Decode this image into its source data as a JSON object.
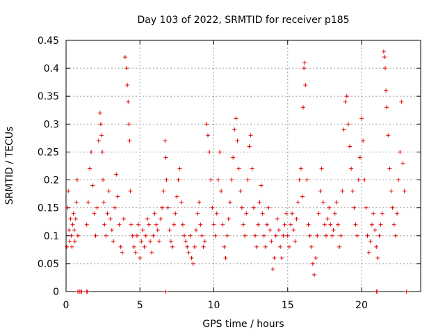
{
  "chart_data": {
    "type": "scatter",
    "title": "Day 103 of 2022, SRMTID for receiver p185",
    "xlabel": "GPS time / hours",
    "ylabel": "SRMTID / TECUs",
    "xlim": [
      0,
      24
    ],
    "ylim": [
      0,
      0.45
    ],
    "xticks": [
      0,
      5,
      10,
      15,
      20
    ],
    "yticks": [
      0,
      0.05,
      0.1,
      0.15,
      0.2,
      0.25,
      0.3,
      0.35,
      0.4,
      0.45
    ],
    "xtick_labels": [
      "0",
      "5",
      "10",
      "15",
      "20"
    ],
    "ytick_labels": [
      "0",
      "0.05",
      "0.1",
      "0.15",
      "0.2",
      "0.25",
      "0.3",
      "0.35",
      "0.4",
      "0.45"
    ],
    "grid": true,
    "marker": "+",
    "color": "#e00000",
    "series": [
      {
        "name": "SRMTID",
        "x": [
          0.05,
          0.1,
          0.15,
          0.2,
          0.25,
          0.3,
          0.35,
          0.4,
          0.45,
          0.5,
          0.55,
          0.6,
          0.65,
          0.7,
          0.75,
          0.8,
          1.4,
          1.5,
          1.6,
          1.7,
          1.8,
          1.9,
          2.0,
          2.1,
          2.2,
          2.3,
          2.35,
          2.4,
          2.45,
          2.5,
          2.55,
          2.6,
          2.7,
          2.8,
          2.9,
          3.0,
          3.1,
          3.2,
          3.3,
          3.4,
          3.5,
          3.6,
          3.7,
          3.8,
          3.9,
          4.0,
          4.1,
          4.15,
          4.2,
          4.25,
          4.3,
          4.35,
          4.4,
          4.5,
          4.6,
          4.7,
          4.8,
          4.9,
          5.0,
          5.1,
          5.2,
          5.3,
          5.4,
          5.5,
          5.6,
          5.7,
          5.8,
          5.9,
          6.0,
          6.1,
          6.2,
          6.3,
          6.4,
          6.5,
          6.6,
          6.7,
          6.75,
          6.8,
          6.9,
          7.0,
          7.1,
          7.2,
          7.3,
          7.4,
          7.5,
          7.6,
          7.7,
          7.8,
          7.9,
          8.0,
          8.1,
          8.2,
          8.3,
          8.4,
          8.5,
          8.6,
          8.7,
          8.8,
          8.9,
          9.0,
          9.1,
          9.2,
          9.3,
          9.4,
          9.5,
          9.6,
          9.7,
          9.8,
          9.9,
          10.0,
          10.1,
          10.2,
          10.3,
          10.4,
          10.5,
          10.6,
          10.7,
          10.8,
          10.9,
          11.0,
          11.1,
          11.2,
          11.3,
          11.4,
          11.5,
          11.6,
          11.7,
          11.8,
          11.9,
          12.0,
          12.1,
          12.2,
          12.3,
          12.4,
          12.5,
          12.6,
          12.7,
          12.8,
          12.9,
          13.0,
          13.1,
          13.2,
          13.3,
          13.4,
          13.5,
          13.6,
          13.7,
          13.8,
          13.9,
          14.0,
          14.1,
          14.2,
          14.3,
          14.4,
          14.5,
          14.6,
          14.7,
          14.8,
          14.9,
          15.0,
          15.1,
          15.2,
          15.3,
          15.4,
          15.5,
          15.6,
          15.7,
          15.8,
          15.9,
          16.0,
          16.05,
          16.1,
          16.15,
          16.2,
          16.3,
          16.4,
          16.5,
          16.6,
          16.7,
          16.8,
          16.9,
          17.0,
          17.1,
          17.2,
          17.3,
          17.4,
          17.5,
          17.6,
          17.7,
          17.8,
          17.9,
          18.0,
          18.1,
          18.2,
          18.3,
          18.4,
          18.5,
          18.6,
          18.7,
          18.8,
          18.9,
          19.0,
          19.1,
          19.2,
          19.3,
          19.4,
          19.5,
          19.6,
          19.7,
          19.8,
          19.9,
          20.0,
          20.1,
          20.2,
          20.3,
          20.4,
          20.5,
          20.6,
          20.7,
          20.8,
          20.9,
          21.0,
          21.1,
          21.2,
          21.3,
          21.4,
          21.5,
          21.55,
          21.6,
          21.65,
          21.7,
          21.8,
          21.9,
          22.0,
          22.1,
          22.2,
          22.3,
          22.4,
          22.5,
          22.6,
          22.7,
          22.8,
          22.9,
          0.8,
          0.9,
          1.0,
          1.05,
          1.4,
          1.45,
          6.75,
          21.0,
          21.05,
          23.05
        ],
        "y": [
          0.08,
          0.15,
          0.18,
          0.11,
          0.09,
          0.13,
          0.1,
          0.08,
          0.12,
          0.14,
          0.11,
          0.09,
          0.13,
          0.16,
          0.2,
          0.1,
          0.12,
          0.16,
          0.22,
          0.25,
          0.19,
          0.14,
          0.1,
          0.15,
          0.27,
          0.32,
          0.3,
          0.28,
          0.25,
          0.2,
          0.16,
          0.12,
          0.1,
          0.14,
          0.18,
          0.13,
          0.11,
          0.09,
          0.15,
          0.21,
          0.17,
          0.12,
          0.08,
          0.07,
          0.13,
          0.42,
          0.4,
          0.37,
          0.34,
          0.3,
          0.27,
          0.18,
          0.12,
          0.1,
          0.08,
          0.07,
          0.1,
          0.12,
          0.06,
          0.09,
          0.11,
          0.08,
          0.1,
          0.13,
          0.12,
          0.09,
          0.07,
          0.1,
          0.14,
          0.12,
          0.11,
          0.09,
          0.13,
          0.15,
          0.18,
          0.27,
          0.24,
          0.2,
          0.15,
          0.11,
          0.09,
          0.08,
          0.12,
          0.14,
          0.17,
          0.2,
          0.22,
          0.16,
          0.12,
          0.1,
          0.09,
          0.08,
          0.07,
          0.1,
          0.06,
          0.05,
          0.08,
          0.11,
          0.14,
          0.16,
          0.12,
          0.1,
          0.08,
          0.09,
          0.3,
          0.28,
          0.25,
          0.2,
          0.15,
          0.12,
          0.1,
          0.14,
          0.2,
          0.25,
          0.18,
          0.12,
          0.08,
          0.06,
          0.1,
          0.13,
          0.16,
          0.2,
          0.24,
          0.29,
          0.31,
          0.27,
          0.22,
          0.18,
          0.15,
          0.12,
          0.1,
          0.14,
          0.2,
          0.26,
          0.28,
          0.22,
          0.15,
          0.1,
          0.08,
          0.12,
          0.16,
          0.19,
          0.14,
          0.1,
          0.08,
          0.12,
          0.15,
          0.11,
          0.09,
          0.04,
          0.06,
          0.1,
          0.13,
          0.11,
          0.08,
          0.06,
          0.1,
          0.12,
          0.14,
          0.1,
          0.08,
          0.12,
          0.14,
          0.11,
          0.09,
          0.13,
          0.16,
          0.2,
          0.22,
          0.17,
          0.33,
          0.4,
          0.41,
          0.37,
          0.2,
          0.12,
          0.1,
          0.08,
          0.05,
          0.03,
          0.06,
          0.1,
          0.14,
          0.18,
          0.22,
          0.16,
          0.12,
          0.1,
          0.13,
          0.15,
          0.12,
          0.1,
          0.11,
          0.14,
          0.16,
          0.12,
          0.08,
          0.1,
          0.18,
          0.29,
          0.34,
          0.35,
          0.3,
          0.26,
          0.22,
          0.18,
          0.15,
          0.12,
          0.1,
          0.2,
          0.24,
          0.31,
          0.27,
          0.2,
          0.15,
          0.1,
          0.07,
          0.09,
          0.12,
          0.14,
          0.11,
          0.08,
          0.06,
          0.1,
          0.12,
          0.14,
          0.43,
          0.42,
          0.4,
          0.36,
          0.33,
          0.28,
          0.22,
          0.18,
          0.15,
          0.12,
          0.1,
          0.14,
          0.2,
          0.25,
          0.34,
          0.23,
          0.18,
          0,
          0,
          0,
          0,
          0,
          0,
          0,
          0,
          0,
          0
        ]
      }
    ]
  }
}
